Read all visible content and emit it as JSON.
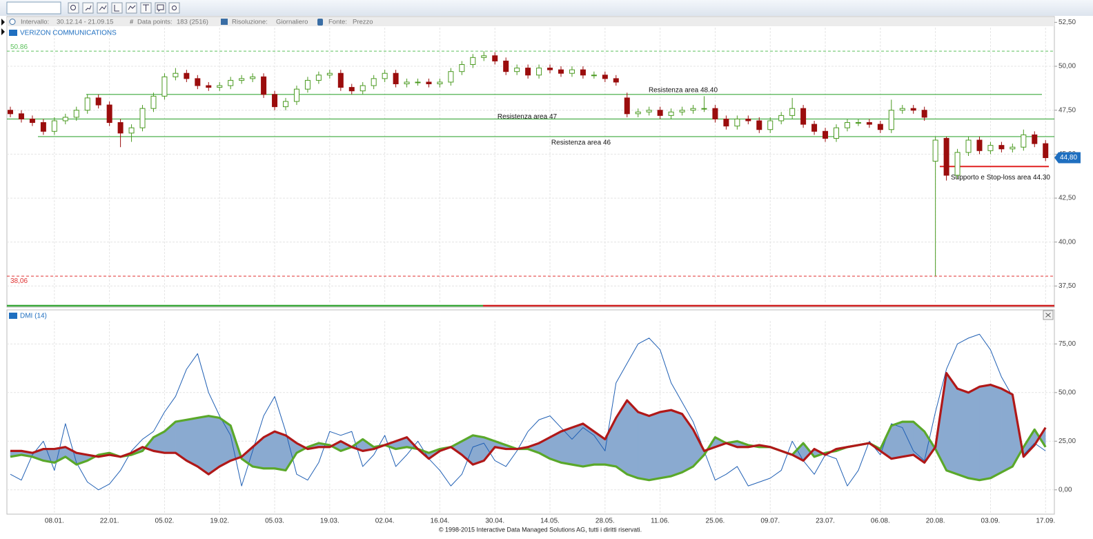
{
  "toolbar": {
    "interval_label": "Intervallo:",
    "interval": "30.12.14 - 21.09.15",
    "points_label": "Data points:",
    "points": "183 (2516)",
    "resolution_label": "Risoluzione:",
    "resolution": "Giornaliero",
    "source_label": "Fonte:",
    "source": "Prezzo"
  },
  "footer": "© 1998-2015 Interactive Data Managed Solutions AG, tutti i diritti riservati.",
  "chart_data": [
    {
      "type": "candlestick",
      "title": "VERIZON COMMUNICATIONS",
      "ylim": [
        36.3,
        52.75
      ],
      "yticks": [
        {
          "value": 37.5,
          "label": "37,50"
        },
        {
          "value": 40,
          "label": "40,00"
        },
        {
          "value": 42.5,
          "label": "42,50"
        },
        {
          "value": 45,
          "label": "45,00"
        },
        {
          "value": 47.5,
          "label": "47,50"
        },
        {
          "value": 50,
          "label": "50,00"
        },
        {
          "value": 52.5,
          "label": "52,50"
        }
      ],
      "grid": true,
      "up_color": "#4a9a20",
      "down_color": "#9b0d0d",
      "candles": [
        [
          47.5,
          47.7,
          47.1,
          47.3
        ],
        [
          47.3,
          47.5,
          46.8,
          47.0
        ],
        [
          47.0,
          47.2,
          46.6,
          46.8
        ],
        [
          46.8,
          47.0,
          46.1,
          46.3
        ],
        [
          46.3,
          47.1,
          46.1,
          46.9
        ],
        [
          46.9,
          47.3,
          46.7,
          47.1
        ],
        [
          47.1,
          47.7,
          46.9,
          47.5
        ],
        [
          47.5,
          48.4,
          47.3,
          48.2
        ],
        [
          48.2,
          48.4,
          47.6,
          47.8
        ],
        [
          47.8,
          48.0,
          46.6,
          46.8
        ],
        [
          46.8,
          47.0,
          45.4,
          46.2
        ],
        [
          46.2,
          46.7,
          45.7,
          46.5
        ],
        [
          46.5,
          47.8,
          46.3,
          47.6
        ],
        [
          47.6,
          48.5,
          47.4,
          48.3
        ],
        [
          48.3,
          49.6,
          48.1,
          49.4
        ],
        [
          49.4,
          49.9,
          49.2,
          49.6
        ],
        [
          49.6,
          49.8,
          49.1,
          49.3
        ],
        [
          49.3,
          49.5,
          48.7,
          48.9
        ],
        [
          48.9,
          49.1,
          48.6,
          48.8
        ],
        [
          48.8,
          49.1,
          48.6,
          48.9
        ],
        [
          48.9,
          49.4,
          48.7,
          49.2
        ],
        [
          49.2,
          49.5,
          49.0,
          49.3
        ],
        [
          49.3,
          49.6,
          49.1,
          49.4
        ],
        [
          49.4,
          49.6,
          48.2,
          48.4
        ],
        [
          48.4,
          48.6,
          47.5,
          47.7
        ],
        [
          47.7,
          48.2,
          47.5,
          48.0
        ],
        [
          48.0,
          48.9,
          47.8,
          48.7
        ],
        [
          48.7,
          49.4,
          48.5,
          49.2
        ],
        [
          49.2,
          49.7,
          49.0,
          49.5
        ],
        [
          49.5,
          49.8,
          49.3,
          49.6
        ],
        [
          49.6,
          49.8,
          48.6,
          48.8
        ],
        [
          48.8,
          49.0,
          48.4,
          48.6
        ],
        [
          48.6,
          49.1,
          48.4,
          48.9
        ],
        [
          48.9,
          49.5,
          48.7,
          49.3
        ],
        [
          49.3,
          49.8,
          49.1,
          49.6
        ],
        [
          49.6,
          49.8,
          48.8,
          49.0
        ],
        [
          49.0,
          49.3,
          48.8,
          49.1
        ],
        [
          49.1,
          49.3,
          48.9,
          49.1
        ],
        [
          49.1,
          49.3,
          48.8,
          49.0
        ],
        [
          49.0,
          49.3,
          48.8,
          49.1
        ],
        [
          49.1,
          49.9,
          48.9,
          49.7
        ],
        [
          49.7,
          50.3,
          49.5,
          50.1
        ],
        [
          50.1,
          50.7,
          49.9,
          50.5
        ],
        [
          50.5,
          50.86,
          50.3,
          50.6
        ],
        [
          50.6,
          50.8,
          50.1,
          50.3
        ],
        [
          50.3,
          50.5,
          49.5,
          49.7
        ],
        [
          49.7,
          50.1,
          49.5,
          49.9
        ],
        [
          49.9,
          50.1,
          49.3,
          49.5
        ],
        [
          49.5,
          50.1,
          49.3,
          49.9
        ],
        [
          49.9,
          50.1,
          49.6,
          49.8
        ],
        [
          49.8,
          50.0,
          49.4,
          49.6
        ],
        [
          49.6,
          50.0,
          49.4,
          49.8
        ],
        [
          49.8,
          50.0,
          49.3,
          49.5
        ],
        [
          49.5,
          49.7,
          49.3,
          49.5
        ],
        [
          49.5,
          49.7,
          49.1,
          49.3
        ],
        [
          49.3,
          49.5,
          48.9,
          49.1
        ],
        [
          48.2,
          48.5,
          47.1,
          47.3
        ],
        [
          47.3,
          47.6,
          47.1,
          47.4
        ],
        [
          47.4,
          47.7,
          47.2,
          47.5
        ],
        [
          47.5,
          47.7,
          47.0,
          47.2
        ],
        [
          47.2,
          47.6,
          47.0,
          47.4
        ],
        [
          47.4,
          47.7,
          47.2,
          47.5
        ],
        [
          47.5,
          47.8,
          47.3,
          47.6
        ],
        [
          47.6,
          48.3,
          47.4,
          47.6
        ],
        [
          47.6,
          47.8,
          46.8,
          47.0
        ],
        [
          47.0,
          47.2,
          46.4,
          46.6
        ],
        [
          46.6,
          47.2,
          46.4,
          47.0
        ],
        [
          47.0,
          47.2,
          46.7,
          46.9
        ],
        [
          46.9,
          47.1,
          46.2,
          46.4
        ],
        [
          46.4,
          47.1,
          46.2,
          46.9
        ],
        [
          46.9,
          47.4,
          46.7,
          47.2
        ],
        [
          47.2,
          48.2,
          47.0,
          47.6
        ],
        [
          47.6,
          47.8,
          46.5,
          46.7
        ],
        [
          46.7,
          46.9,
          46.1,
          46.3
        ],
        [
          46.3,
          46.5,
          45.7,
          45.9
        ],
        [
          45.9,
          46.7,
          45.7,
          46.5
        ],
        [
          46.5,
          47.0,
          46.3,
          46.8
        ],
        [
          46.8,
          47.0,
          46.6,
          46.8
        ],
        [
          46.8,
          47.0,
          46.5,
          46.7
        ],
        [
          46.7,
          46.9,
          46.2,
          46.4
        ],
        [
          46.4,
          48.1,
          46.2,
          47.5
        ],
        [
          47.5,
          47.8,
          47.3,
          47.6
        ],
        [
          47.6,
          47.8,
          47.3,
          47.5
        ],
        [
          47.5,
          47.7,
          46.9,
          47.1
        ],
        [
          44.6,
          46.0,
          38.06,
          45.8
        ],
        [
          45.9,
          46.0,
          43.5,
          43.8
        ],
        [
          43.8,
          45.3,
          43.6,
          45.1
        ],
        [
          45.1,
          46.0,
          44.9,
          45.8
        ],
        [
          45.8,
          46.0,
          45.0,
          45.2
        ],
        [
          45.2,
          45.7,
          45.0,
          45.5
        ],
        [
          45.5,
          45.7,
          45.1,
          45.3
        ],
        [
          45.3,
          45.6,
          45.1,
          45.4
        ],
        [
          45.4,
          46.4,
          45.2,
          46.1
        ],
        [
          46.1,
          46.3,
          45.4,
          45.6
        ],
        [
          45.6,
          45.8,
          44.6,
          44.8
        ]
      ],
      "reference_lines": [
        {
          "value": 50.86,
          "label": "50.86",
          "color": "#5cc05c"
        },
        {
          "value": 38.06,
          "label": "38,06",
          "color": "#e03030"
        }
      ],
      "levels": [
        {
          "value": 48.4,
          "label": "Resistenza area 48.40",
          "color": "#3aa83a"
        },
        {
          "value": 47,
          "label": "Resistenza area 47",
          "color": "#3aa83a"
        },
        {
          "value": 46,
          "label": "Resistenza area 46",
          "color": "#3aa83a"
        },
        {
          "value": 44.3,
          "label": "Supporto e Stop-loss area 44.30",
          "color": "#e02020"
        }
      ],
      "last_price": {
        "value": 44.8,
        "label": "44,80",
        "color": "#1f6fc0"
      }
    },
    {
      "type": "line",
      "title": "DMI (14)",
      "categories": [
        null,
        null,
        null,
        null,
        "08.01.",
        null,
        null,
        null,
        null,
        "22.01.",
        null,
        null,
        null,
        null,
        "05.02.",
        null,
        null,
        null,
        null,
        "19.02.",
        null,
        null,
        null,
        null,
        "05.03.",
        null,
        null,
        null,
        null,
        "19.03.",
        null,
        null,
        null,
        null,
        "02.04.",
        null,
        null,
        null,
        null,
        "16.04.",
        null,
        null,
        null,
        null,
        "30.04.",
        null,
        null,
        null,
        null,
        "14.05.",
        null,
        null,
        null,
        null,
        "28.05.",
        null,
        null,
        null,
        null,
        "11.06.",
        null,
        null,
        null,
        null,
        "25.06.",
        null,
        null,
        null,
        null,
        "09.07.",
        null,
        null,
        null,
        null,
        "23.07.",
        null,
        null,
        null,
        null,
        "06.08.",
        null,
        null,
        null,
        null,
        "20.08.",
        null,
        null,
        null,
        null,
        "03.09.",
        null,
        null,
        null,
        null,
        "17.09."
      ],
      "ylim": [
        -12.5,
        92.5
      ],
      "yticks": [
        {
          "value": 0,
          "label": "0,00"
        },
        {
          "value": 25,
          "label": "25,00"
        },
        {
          "value": 50,
          "label": "50,00"
        },
        {
          "value": 75,
          "label": "75,00"
        }
      ],
      "grid": true,
      "fill": "#8aaad0",
      "series": [
        {
          "color": "#1f5fb4",
          "values": [
            8,
            5,
            18,
            25,
            10,
            34,
            14,
            4,
            0,
            3,
            10,
            20,
            26,
            30,
            40,
            48,
            62,
            70,
            50,
            38,
            28,
            2,
            20,
            38,
            48,
            30,
            8,
            5,
            14,
            30,
            28,
            30,
            12,
            18,
            28,
            12,
            18,
            25,
            16,
            10,
            2,
            8,
            22,
            24,
            15,
            12,
            20,
            30,
            36,
            38,
            32,
            26,
            32,
            28,
            20,
            55,
            65,
            75,
            78,
            72,
            55,
            45,
            35,
            20,
            5,
            8,
            12,
            2,
            4,
            6,
            10,
            25,
            15,
            8,
            18,
            16,
            2,
            10,
            25,
            18,
            34,
            32,
            20,
            15,
            40,
            62,
            75,
            78,
            80,
            72,
            58,
            48,
            18,
            24,
            20
          ]
        },
        {
          "color": "#5aa82a",
          "values": [
            17,
            18,
            17,
            15,
            14,
            17,
            13,
            15,
            18,
            19,
            17,
            18,
            20,
            27,
            30,
            35,
            36,
            37,
            38,
            37,
            33,
            16,
            12,
            11,
            11,
            10,
            19,
            22,
            24,
            23,
            20,
            22,
            26,
            22,
            23,
            21,
            22,
            21,
            19,
            21,
            22,
            25,
            28,
            27,
            25,
            23,
            21,
            21,
            19,
            16,
            14,
            13,
            12,
            13,
            13,
            12,
            8,
            6,
            5,
            6,
            7,
            9,
            12,
            18,
            27,
            24,
            25,
            23,
            22,
            22,
            20,
            18,
            24,
            17,
            19,
            20,
            22,
            23,
            24,
            21,
            33,
            35,
            35,
            30,
            21,
            10,
            8,
            6,
            5,
            6,
            9,
            12,
            22,
            31,
            22
          ]
        },
        {
          "color": "#b01818",
          "values": [
            20,
            20,
            19,
            21,
            21,
            22,
            19,
            18,
            17,
            18,
            17,
            19,
            22,
            20,
            19,
            19,
            15,
            12,
            8,
            12,
            15,
            17,
            22,
            27,
            30,
            28,
            24,
            21,
            22,
            22,
            25,
            22,
            20,
            21,
            23,
            25,
            27,
            21,
            16,
            20,
            22,
            18,
            13,
            15,
            22,
            21,
            21,
            22,
            24,
            27,
            30,
            32,
            34,
            30,
            26,
            37,
            46,
            40,
            38,
            40,
            41,
            39,
            31,
            20,
            22,
            24,
            22,
            22,
            23,
            22,
            20,
            18,
            15,
            21,
            18,
            21,
            22,
            23,
            24,
            20,
            16,
            17,
            18,
            14,
            22,
            60,
            52,
            50,
            53,
            54,
            52,
            49,
            17,
            23,
            32
          ]
        }
      ]
    }
  ]
}
